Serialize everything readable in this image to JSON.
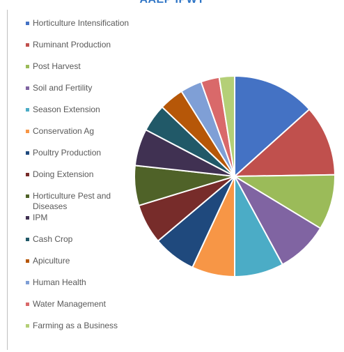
{
  "chart_data": {
    "type": "pie",
    "title": "AAEP IPWT",
    "legend_position": "left",
    "slices": [
      {
        "label": "Horticulture Intensification",
        "value": 13.5,
        "color": "#4472c4"
      },
      {
        "label": "Ruminant Production",
        "value": 11.5,
        "color": "#c0504d"
      },
      {
        "label": "Post Harvest",
        "value": 9.0,
        "color": "#9bbb59"
      },
      {
        "label": "Soil and Fertility",
        "value": 8.5,
        "color": "#8064a2"
      },
      {
        "label": "Season Extension",
        "value": 8.0,
        "color": "#4bacc6"
      },
      {
        "label": "Conservation Ag",
        "value": 7.0,
        "color": "#f79646"
      },
      {
        "label": "Poultry Production",
        "value": 7.0,
        "color": "#1f497d"
      },
      {
        "label": "Doing Extension",
        "value": 6.5,
        "color": "#772c2a"
      },
      {
        "label": "Horticulture Pest and Diseases",
        "value": 6.5,
        "color": "#4f6228"
      },
      {
        "label": "IPM",
        "value": 6.0,
        "color": "#403152"
      },
      {
        "label": "Cash Crop",
        "value": 4.5,
        "color": "#215968"
      },
      {
        "label": "Apiculture",
        "value": 4.0,
        "color": "#b65708"
      },
      {
        "label": "Human Health",
        "value": 3.5,
        "color": "#7f9fd6"
      },
      {
        "label": "Water Management",
        "value": 3.0,
        "color": "#d9696a"
      },
      {
        "label": "Farming as a Business",
        "value": 2.5,
        "color": "#b4cf77"
      }
    ]
  }
}
